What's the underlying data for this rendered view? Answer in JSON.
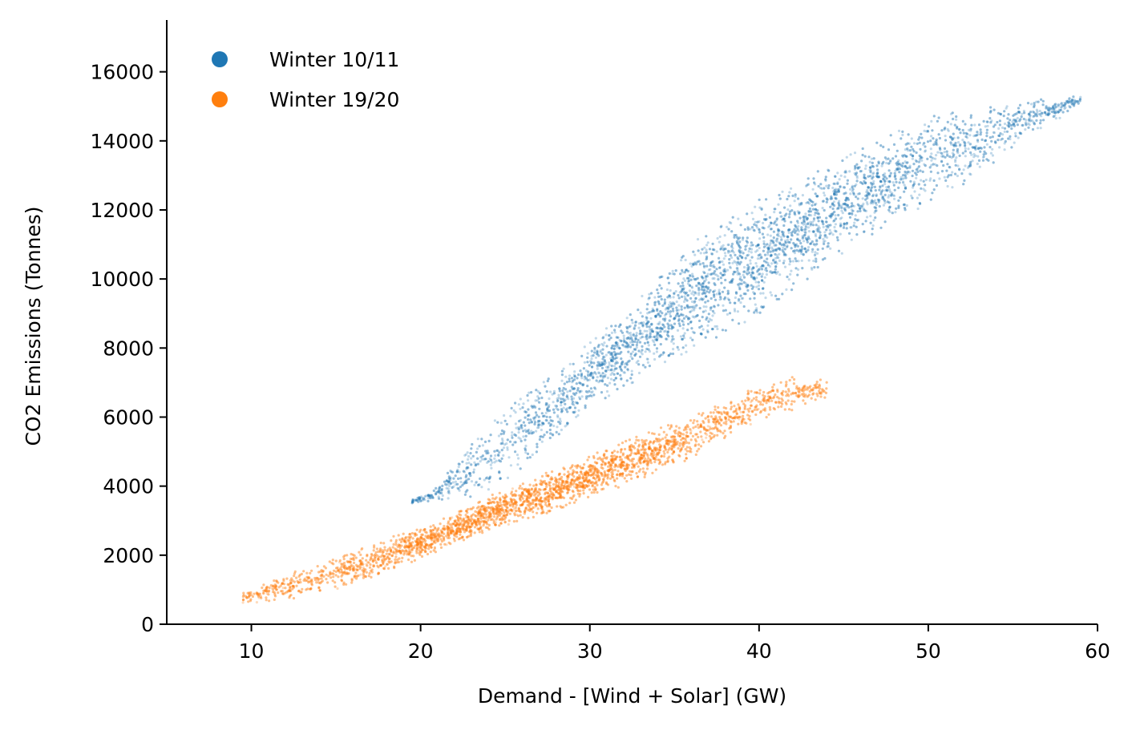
{
  "chart_data": {
    "type": "scatter",
    "title": "",
    "xlabel": "Demand - [Wind + Solar] (GW)",
    "ylabel": "CO2 Emissions (Tonnes)",
    "xlim": [
      5,
      60
    ],
    "ylim": [
      0,
      17500
    ],
    "xticks": [
      10,
      20,
      30,
      40,
      50,
      60
    ],
    "yticks": [
      0,
      2000,
      4000,
      6000,
      8000,
      10000,
      12000,
      14000,
      16000
    ],
    "grid": false,
    "legend_position": "top-left",
    "series": [
      {
        "name": "Winter 10/11",
        "color": "#1f77b4",
        "approx_points": 5000,
        "x_range": [
          19.5,
          59
        ],
        "envelope": [
          {
            "x": 19.5,
            "y_low": 3500,
            "y_high": 3600
          },
          {
            "x": 21,
            "y_low": 3600,
            "y_high": 4000
          },
          {
            "x": 22,
            "y_low": 3600,
            "y_high": 4800
          },
          {
            "x": 24,
            "y_low": 3800,
            "y_high": 5800
          },
          {
            "x": 26,
            "y_low": 4500,
            "y_high": 6600
          },
          {
            "x": 28,
            "y_low": 5400,
            "y_high": 7300
          },
          {
            "x": 30,
            "y_low": 6300,
            "y_high": 8200
          },
          {
            "x": 32,
            "y_low": 6800,
            "y_high": 9000
          },
          {
            "x": 34,
            "y_low": 7400,
            "y_high": 10000
          },
          {
            "x": 36,
            "y_low": 7900,
            "y_high": 11000
          },
          {
            "x": 38,
            "y_low": 8400,
            "y_high": 11800
          },
          {
            "x": 40,
            "y_low": 9000,
            "y_high": 12300
          },
          {
            "x": 42,
            "y_low": 9700,
            "y_high": 12800
          },
          {
            "x": 44,
            "y_low": 10400,
            "y_high": 13300
          },
          {
            "x": 46,
            "y_low": 11100,
            "y_high": 13800
          },
          {
            "x": 48,
            "y_low": 11600,
            "y_high": 14300
          },
          {
            "x": 50,
            "y_low": 12200,
            "y_high": 14700
          },
          {
            "x": 52,
            "y_low": 12700,
            "y_high": 15000
          },
          {
            "x": 54,
            "y_low": 13400,
            "y_high": 15000
          },
          {
            "x": 56,
            "y_low": 14200,
            "y_high": 15200
          },
          {
            "x": 58,
            "y_low": 14700,
            "y_high": 15300
          },
          {
            "x": 59,
            "y_low": 15100,
            "y_high": 15300
          }
        ]
      },
      {
        "name": "Winter 19/20",
        "color": "#ff7f0e",
        "approx_points": 5000,
        "x_range": [
          9.5,
          44
        ],
        "envelope": [
          {
            "x": 9.5,
            "y_low": 600,
            "y_high": 900
          },
          {
            "x": 12,
            "y_low": 700,
            "y_high": 1500
          },
          {
            "x": 15,
            "y_low": 1000,
            "y_high": 1900
          },
          {
            "x": 18,
            "y_low": 1500,
            "y_high": 2500
          },
          {
            "x": 20,
            "y_low": 1900,
            "y_high": 2800
          },
          {
            "x": 22,
            "y_low": 2300,
            "y_high": 3200
          },
          {
            "x": 24,
            "y_low": 2700,
            "y_high": 3700
          },
          {
            "x": 26,
            "y_low": 3000,
            "y_high": 4100
          },
          {
            "x": 28,
            "y_low": 3300,
            "y_high": 4500
          },
          {
            "x": 30,
            "y_low": 3700,
            "y_high": 4900
          },
          {
            "x": 32,
            "y_low": 4000,
            "y_high": 5300
          },
          {
            "x": 34,
            "y_low": 4400,
            "y_high": 5700
          },
          {
            "x": 36,
            "y_low": 4800,
            "y_high": 6000
          },
          {
            "x": 38,
            "y_low": 5400,
            "y_high": 6500
          },
          {
            "x": 40,
            "y_low": 5900,
            "y_high": 6900
          },
          {
            "x": 42,
            "y_low": 6200,
            "y_high": 7200
          },
          {
            "x": 44,
            "y_low": 6500,
            "y_high": 7100
          }
        ]
      }
    ]
  }
}
